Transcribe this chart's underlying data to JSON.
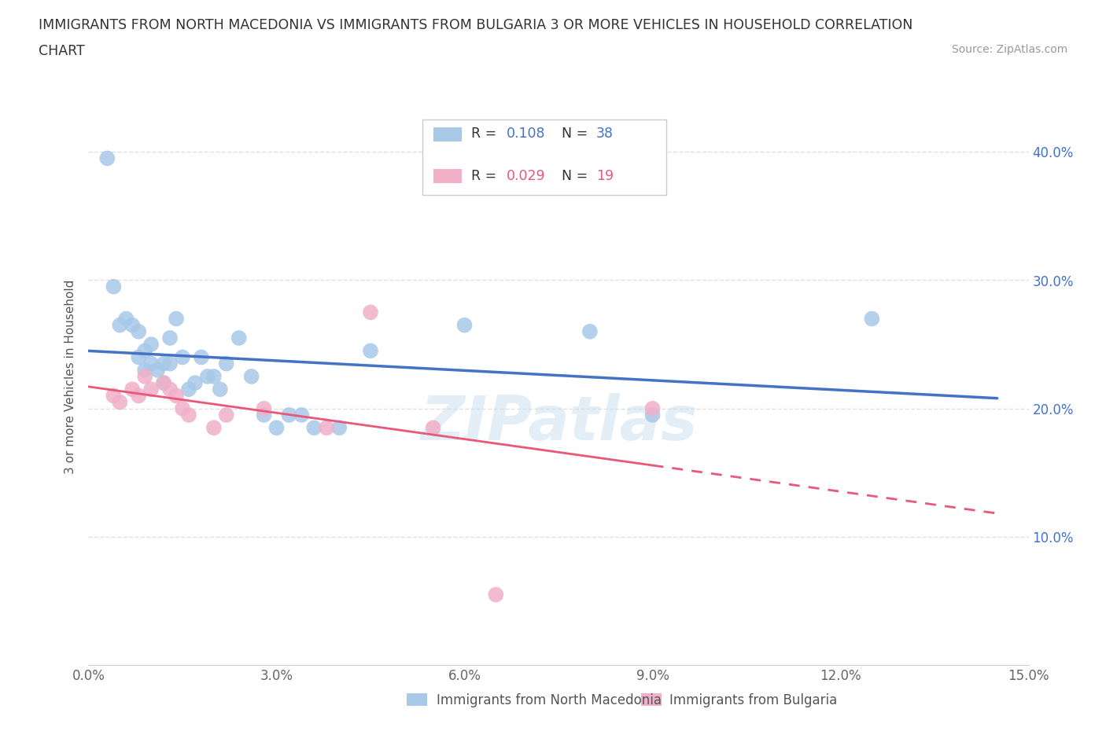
{
  "title_line1": "IMMIGRANTS FROM NORTH MACEDONIA VS IMMIGRANTS FROM BULGARIA 3 OR MORE VEHICLES IN HOUSEHOLD CORRELATION",
  "title_line2": "CHART",
  "source": "Source: ZipAtlas.com",
  "ylabel": "3 or more Vehicles in Household",
  "xlim": [
    0.0,
    0.15
  ],
  "ylim": [
    0.0,
    0.45
  ],
  "xticks": [
    0.0,
    0.03,
    0.06,
    0.09,
    0.12,
    0.15
  ],
  "xticklabels": [
    "0.0%",
    "3.0%",
    "6.0%",
    "9.0%",
    "12.0%",
    "15.0%"
  ],
  "yticks_left": [
    0.0,
    0.1,
    0.2,
    0.3,
    0.4
  ],
  "yticks_right": [
    0.1,
    0.2,
    0.3,
    0.4
  ],
  "yticklabels_left": [
    "",
    "",
    "",
    "",
    ""
  ],
  "yticklabels_right": [
    "10.0%",
    "20.0%",
    "30.0%",
    "40.0%"
  ],
  "color_mac": "#a8c8e8",
  "color_bul": "#f0b0c8",
  "line_color_mac": "#4472c4",
  "line_color_bul": "#e85878",
  "R_mac": 0.108,
  "N_mac": 38,
  "R_bul": 0.029,
  "N_bul": 19,
  "scatter_mac_x": [
    0.003,
    0.004,
    0.005,
    0.006,
    0.007,
    0.008,
    0.008,
    0.009,
    0.009,
    0.01,
    0.01,
    0.011,
    0.012,
    0.012,
    0.013,
    0.013,
    0.014,
    0.015,
    0.016,
    0.017,
    0.018,
    0.019,
    0.02,
    0.021,
    0.022,
    0.024,
    0.026,
    0.028,
    0.03,
    0.032,
    0.034,
    0.036,
    0.04,
    0.045,
    0.06,
    0.08,
    0.09,
    0.125
  ],
  "scatter_mac_y": [
    0.395,
    0.295,
    0.265,
    0.27,
    0.265,
    0.26,
    0.24,
    0.245,
    0.23,
    0.235,
    0.25,
    0.23,
    0.235,
    0.22,
    0.235,
    0.255,
    0.27,
    0.24,
    0.215,
    0.22,
    0.24,
    0.225,
    0.225,
    0.215,
    0.235,
    0.255,
    0.225,
    0.195,
    0.185,
    0.195,
    0.195,
    0.185,
    0.185,
    0.245,
    0.265,
    0.26,
    0.195,
    0.27
  ],
  "scatter_bul_x": [
    0.004,
    0.005,
    0.007,
    0.008,
    0.009,
    0.01,
    0.012,
    0.013,
    0.014,
    0.015,
    0.016,
    0.02,
    0.022,
    0.028,
    0.038,
    0.045,
    0.055,
    0.065,
    0.09
  ],
  "scatter_bul_y": [
    0.21,
    0.205,
    0.215,
    0.21,
    0.225,
    0.215,
    0.22,
    0.215,
    0.21,
    0.2,
    0.195,
    0.185,
    0.195,
    0.2,
    0.185,
    0.275,
    0.185,
    0.055,
    0.2
  ],
  "watermark": "ZIPatlas",
  "background_color": "#ffffff",
  "grid_color": "#e0e0e0",
  "legend_R_label": "R = ",
  "legend_N_label": "  N = "
}
